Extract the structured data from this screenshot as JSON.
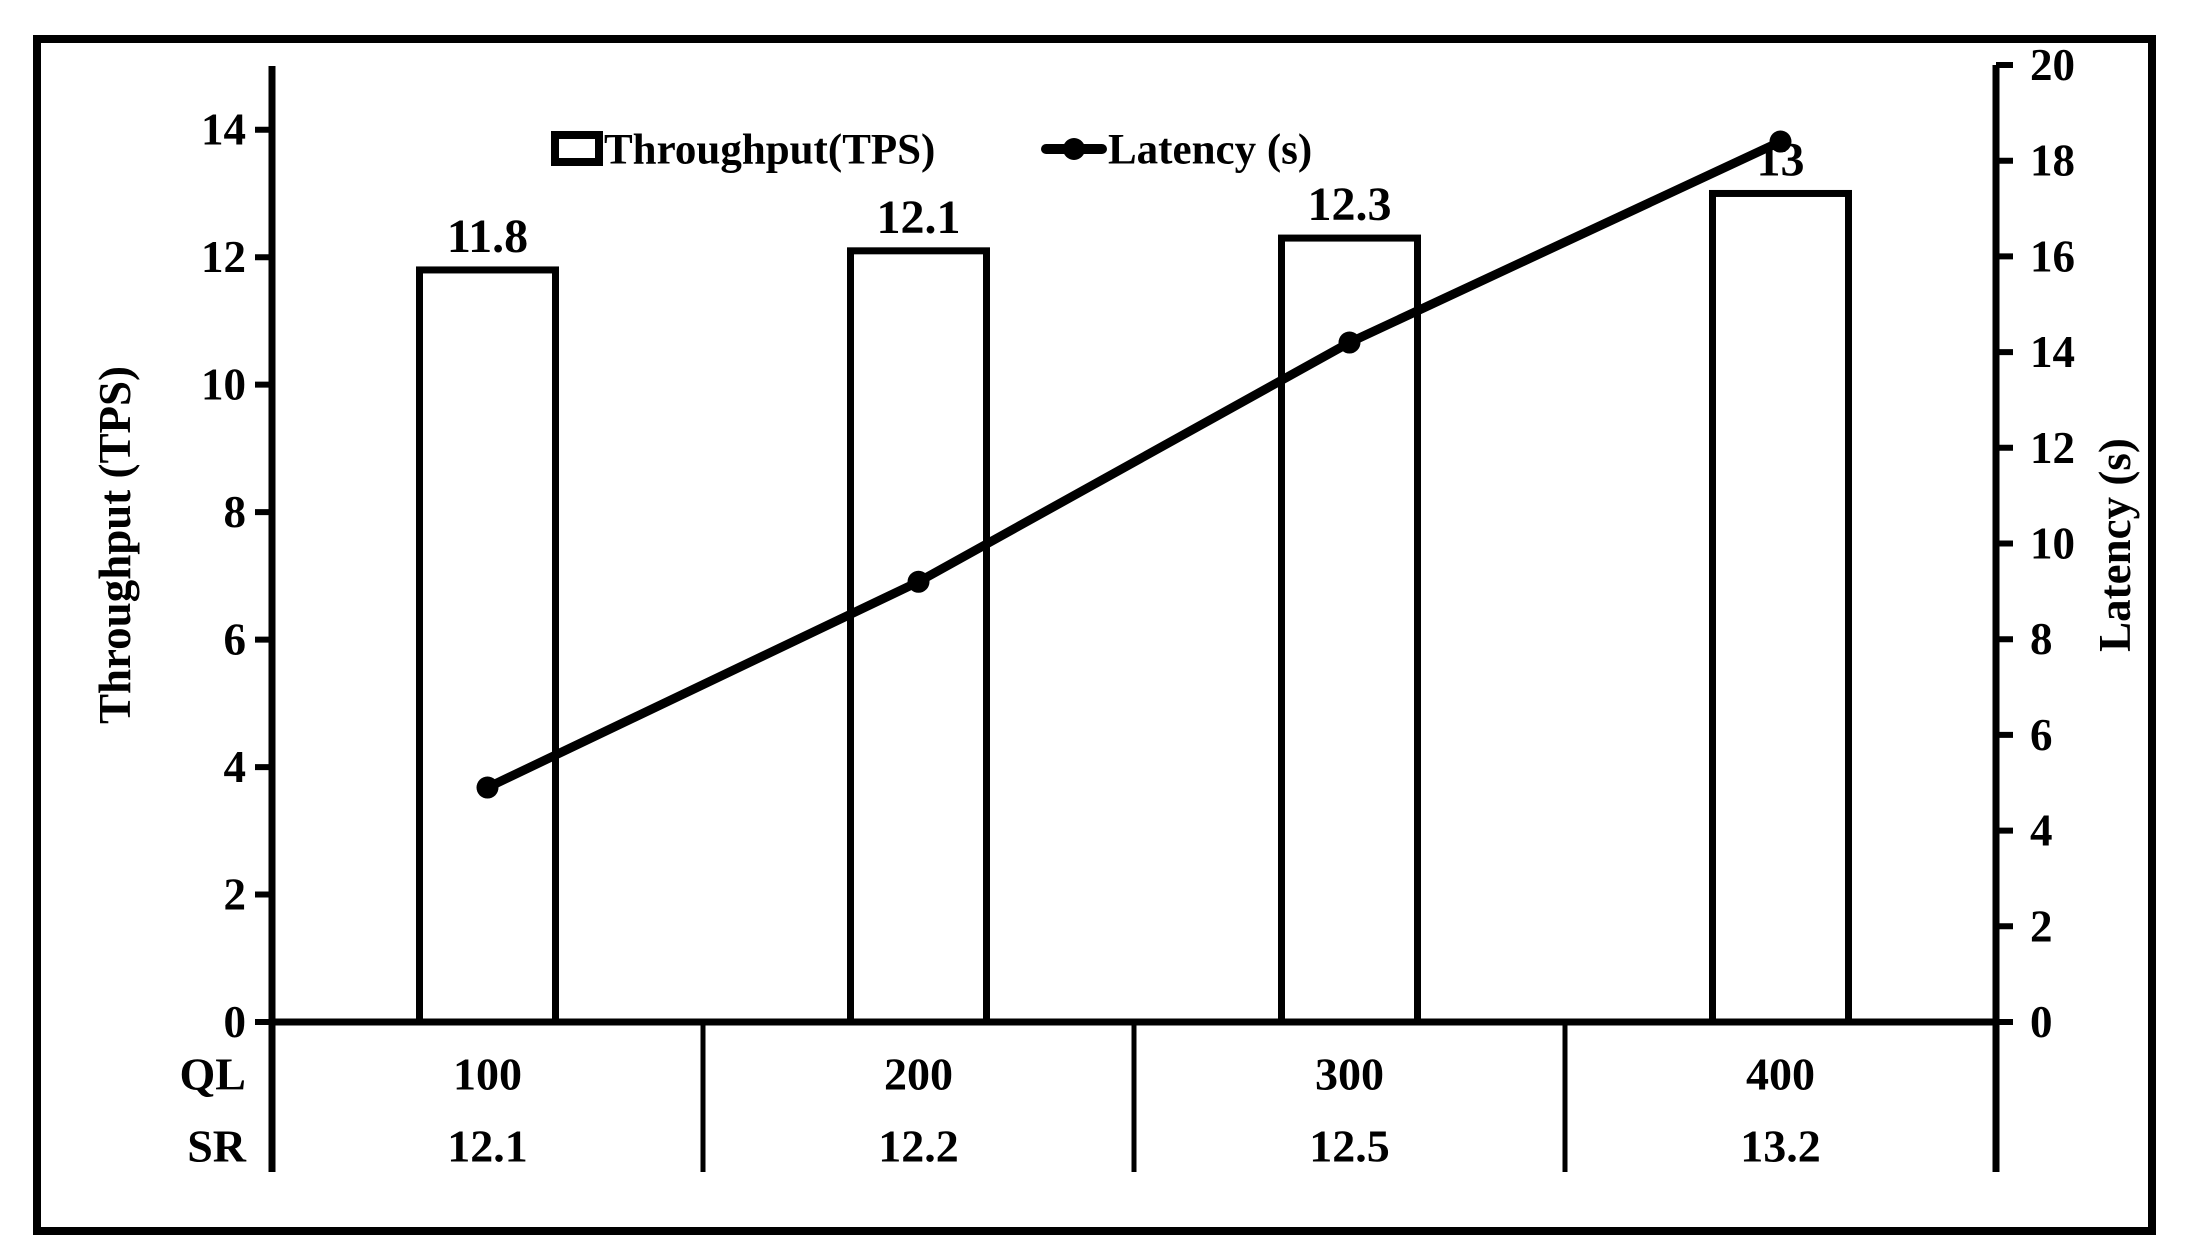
{
  "chart_data": {
    "type": "combo-bar-line",
    "title": "",
    "categories": [
      "100",
      "200",
      "300",
      "400"
    ],
    "series": [
      {
        "name": "Throughput(TPS)",
        "type": "bar",
        "axis": "left",
        "values": [
          11.8,
          12.1,
          12.3,
          13
        ],
        "labels": [
          "11.8",
          "12.1",
          "12.3",
          "13"
        ],
        "fill": "#ffffff",
        "stroke": "#000000"
      },
      {
        "name": "Latency (s)",
        "type": "line",
        "axis": "right",
        "values": [
          4.9,
          9.2,
          14.2,
          18.4
        ],
        "stroke": "#000000",
        "marker": "filled-circle"
      }
    ],
    "axes": {
      "left": {
        "label": "Throughput (TPS)",
        "min": 0,
        "max": 15,
        "ticks": [
          "14",
          "12",
          "10",
          "8",
          "6",
          "4",
          "2",
          "0"
        ],
        "tick_values": [
          14,
          12,
          10,
          8,
          6,
          4,
          2,
          0
        ]
      },
      "right": {
        "label": "Latency (s)",
        "min": 0,
        "max": 20,
        "ticks": [
          "20",
          "18",
          "16",
          "14",
          "12",
          "10",
          "8",
          "6",
          "4",
          "2",
          "0"
        ],
        "tick_values": [
          20,
          18,
          16,
          14,
          12,
          10,
          8,
          6,
          4,
          2,
          0
        ]
      }
    },
    "x_table": {
      "rows": [
        {
          "header": "QL",
          "values": [
            "100",
            "200",
            "300",
            "400"
          ]
        },
        {
          "header": "SR",
          "values": [
            "12.1",
            "12.2",
            "12.5",
            "13.2"
          ]
        }
      ]
    },
    "legend": {
      "position": "top-center",
      "items": [
        {
          "label": "Throughput(TPS)",
          "marker": "square-outline"
        },
        {
          "label": "Latency (s)",
          "marker": "line-dot"
        }
      ]
    },
    "grid": false,
    "colors": {
      "foreground": "#000000",
      "background": "#ffffff"
    }
  }
}
